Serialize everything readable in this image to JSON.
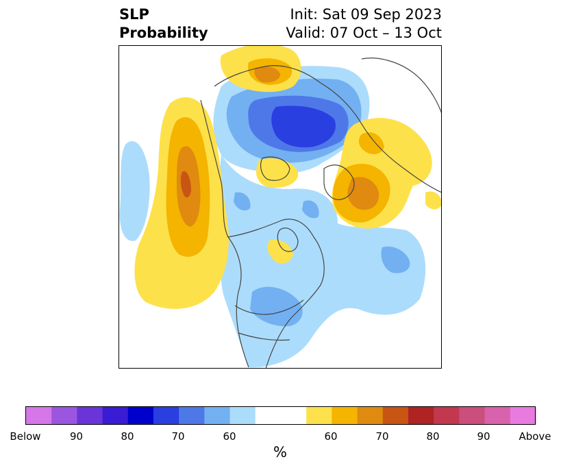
{
  "title": {
    "left_line1": "SLP",
    "left_line2": "Probability",
    "right_line1": "Init: Sat 09 Sep 2023",
    "right_line2": "Valid: 07 Oct – 13 Oct"
  },
  "colorbar": {
    "units": "%",
    "below_colors": [
      "#d677e8",
      "#9b56e0",
      "#6a35d8",
      "#3a1cd4",
      "#0000cd",
      "#2a3fe0",
      "#4e78e8",
      "#72b0f2",
      "#acdcfb"
    ],
    "neutral_color": "#ffffff",
    "above_colors": [
      "#fde14a",
      "#f4b400",
      "#e08a10",
      "#c85514",
      "#b02323",
      "#c2384f",
      "#cc4e7c",
      "#d862ac",
      "#e87ae0"
    ],
    "labels": [
      {
        "text": "Below"
      },
      {
        "text": "90"
      },
      {
        "text": "80"
      },
      {
        "text": "70"
      },
      {
        "text": "60"
      },
      {
        "text": "60"
      },
      {
        "text": "70"
      },
      {
        "text": "80"
      },
      {
        "text": "90"
      },
      {
        "text": "Above"
      }
    ]
  }
}
